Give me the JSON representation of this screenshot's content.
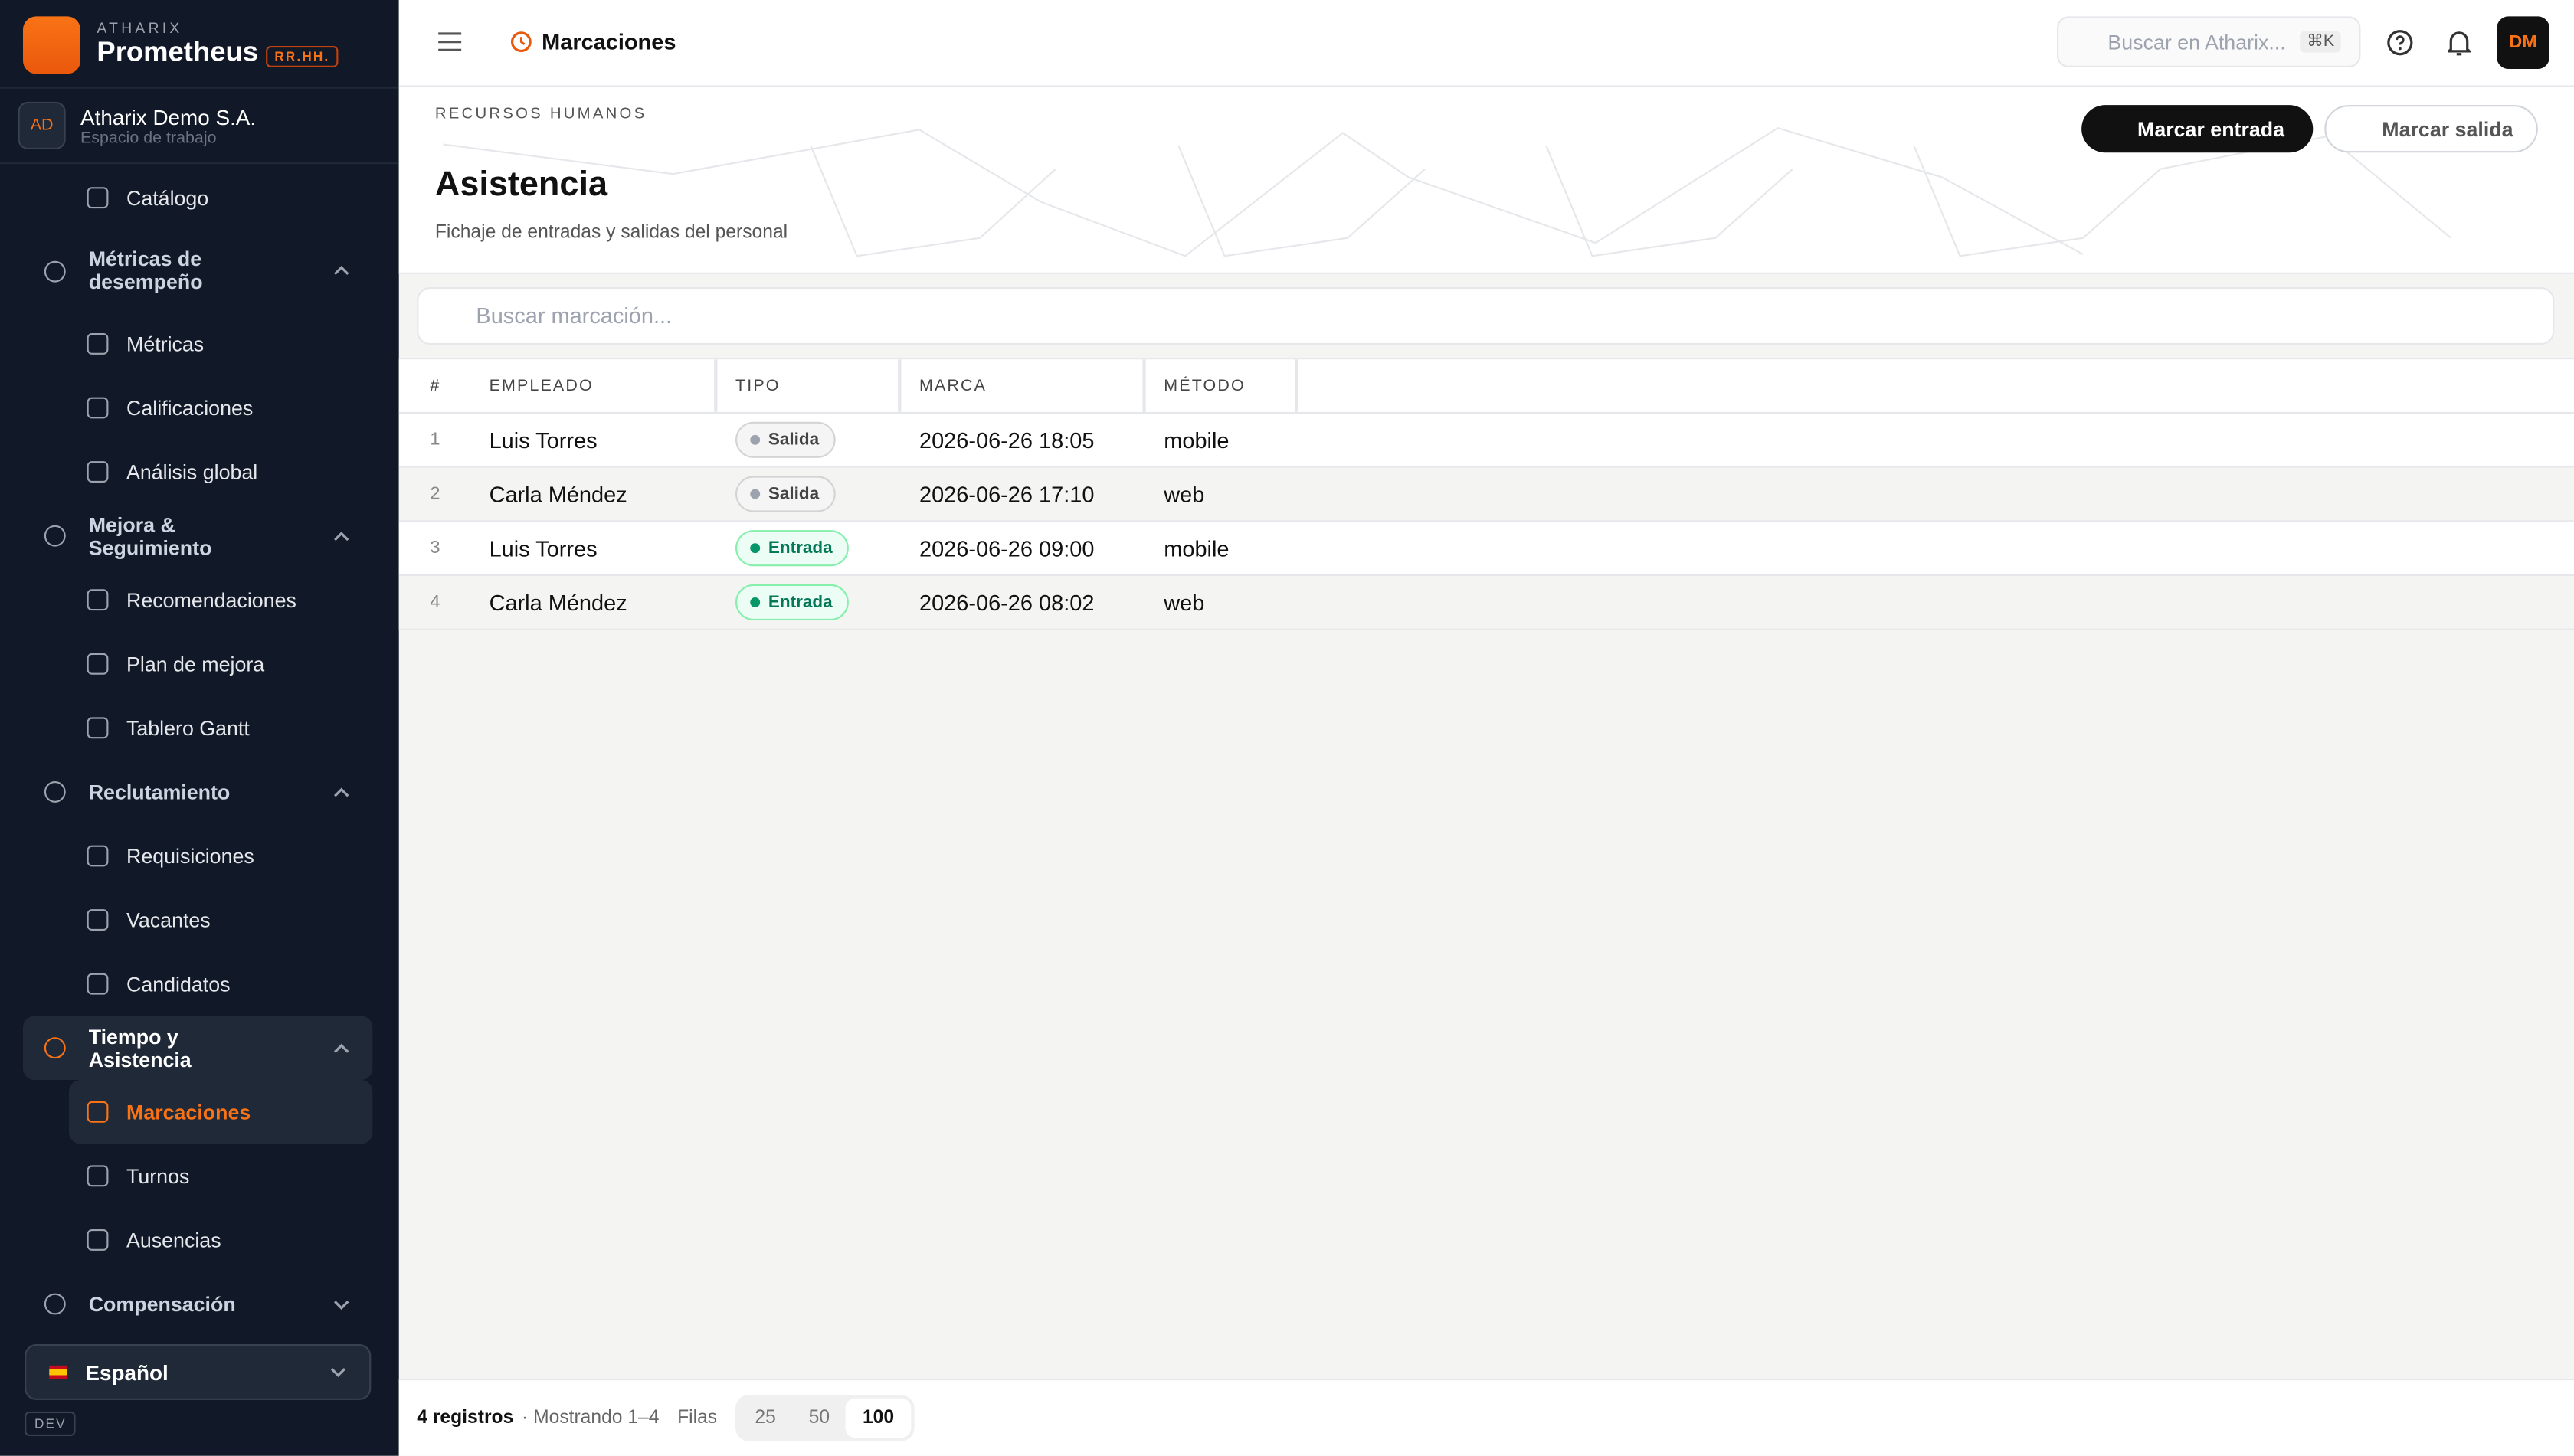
{
  "sidebar": {
    "brand": {
      "company": "ATHARIX",
      "product": "Prometheus",
      "tag": "RR.HH."
    },
    "workspace": {
      "initials": "AD",
      "name": "Atharix Demo S.A.",
      "subtitle": "Espacio de trabajo"
    },
    "nav": [
      {
        "label": "Catálogo",
        "kind": "child"
      },
      {
        "label": "Métricas de desempeño",
        "kind": "section",
        "expanded": true
      },
      {
        "label": "Métricas",
        "kind": "child"
      },
      {
        "label": "Calificaciones",
        "kind": "child"
      },
      {
        "label": "Análisis global",
        "kind": "child"
      },
      {
        "label": "Mejora & Seguimiento",
        "kind": "section",
        "expanded": true
      },
      {
        "label": "Recomendaciones",
        "kind": "child"
      },
      {
        "label": "Plan de mejora",
        "kind": "child"
      },
      {
        "label": "Tablero Gantt",
        "kind": "child"
      },
      {
        "label": "Reclutamiento",
        "kind": "section",
        "expanded": true
      },
      {
        "label": "Requisiciones",
        "kind": "child"
      },
      {
        "label": "Vacantes",
        "kind": "child"
      },
      {
        "label": "Candidatos",
        "kind": "child"
      },
      {
        "label": "Tiempo y Asistencia",
        "kind": "section",
        "expanded": true,
        "active": true
      },
      {
        "label": "Marcaciones",
        "kind": "child",
        "active": true
      },
      {
        "label": "Turnos",
        "kind": "child"
      },
      {
        "label": "Ausencias",
        "kind": "child"
      },
      {
        "label": "Compensación",
        "kind": "section",
        "expanded": false
      }
    ],
    "language": "Español",
    "env": "DEV"
  },
  "topbar": {
    "breadcrumb": "Marcaciones",
    "search_placeholder": "Buscar en Atharix...",
    "shortcut": "⌘K",
    "avatar": "DM"
  },
  "header": {
    "eyebrow": "RECURSOS HUMANOS",
    "title": "Asistencia",
    "subtitle": "Fichaje de entradas y salidas del personal",
    "actions": [
      "Marcar entrada",
      "Marcar salida"
    ]
  },
  "search_placeholder": "Buscar marcación...",
  "table": {
    "columns": [
      "#",
      "EMPLEADO",
      "TIPO",
      "MARCA",
      "MÉTODO"
    ],
    "rows": [
      {
        "num": 1,
        "employee": "Luis Torres",
        "type": "Salida",
        "tone": "neutral",
        "mark": "2026-06-26 18:05",
        "method": "mobile"
      },
      {
        "num": 2,
        "employee": "Carla Méndez",
        "type": "Salida",
        "tone": "neutral",
        "mark": "2026-06-26 17:10",
        "method": "web"
      },
      {
        "num": 3,
        "employee": "Luis Torres",
        "type": "Entrada",
        "tone": "success",
        "mark": "2026-06-26 09:00",
        "method": "mobile"
      },
      {
        "num": 4,
        "employee": "Carla Méndez",
        "type": "Entrada",
        "tone": "success",
        "mark": "2026-06-26 08:02",
        "method": "web"
      }
    ]
  },
  "footer": {
    "count": "4 registros",
    "showing": "· Mostrando 1–4",
    "rows_label": "Filas",
    "page_sizes": [
      25,
      50,
      100
    ],
    "selected_size_index": 2
  }
}
